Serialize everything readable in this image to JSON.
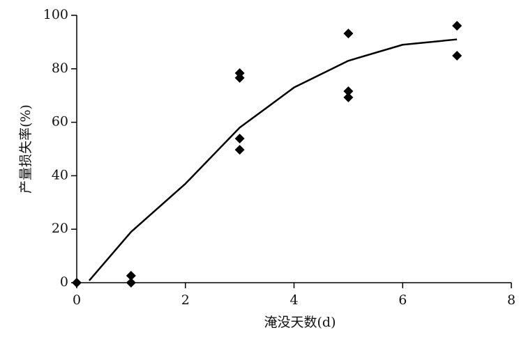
{
  "chart_data": {
    "type": "scatter",
    "xlabel": "淹没天数(d)",
    "ylabel": "产量损失率(%)",
    "xlim": [
      0,
      8
    ],
    "xticks": [
      0,
      2,
      4,
      6,
      8
    ],
    "ylim": [
      0,
      100
    ],
    "yticks": [
      0,
      20,
      40,
      60,
      80,
      100
    ],
    "series": [
      {
        "type": "scatter",
        "color": "#000000",
        "x": [
          0,
          1,
          1,
          3,
          3,
          3,
          3,
          5,
          5,
          5,
          7,
          7
        ],
        "values": [
          0,
          2.6,
          0,
          78.4,
          76.6,
          53.9,
          49.7,
          93.2,
          71.6,
          69.3,
          96.1,
          84.9
        ]
      },
      {
        "type": "line",
        "color": "#000000",
        "x": [
          0.23,
          1,
          2,
          3,
          4,
          5,
          6,
          7
        ],
        "values": [
          0.8,
          19,
          37,
          58,
          73,
          83,
          89,
          91
        ]
      }
    ]
  }
}
